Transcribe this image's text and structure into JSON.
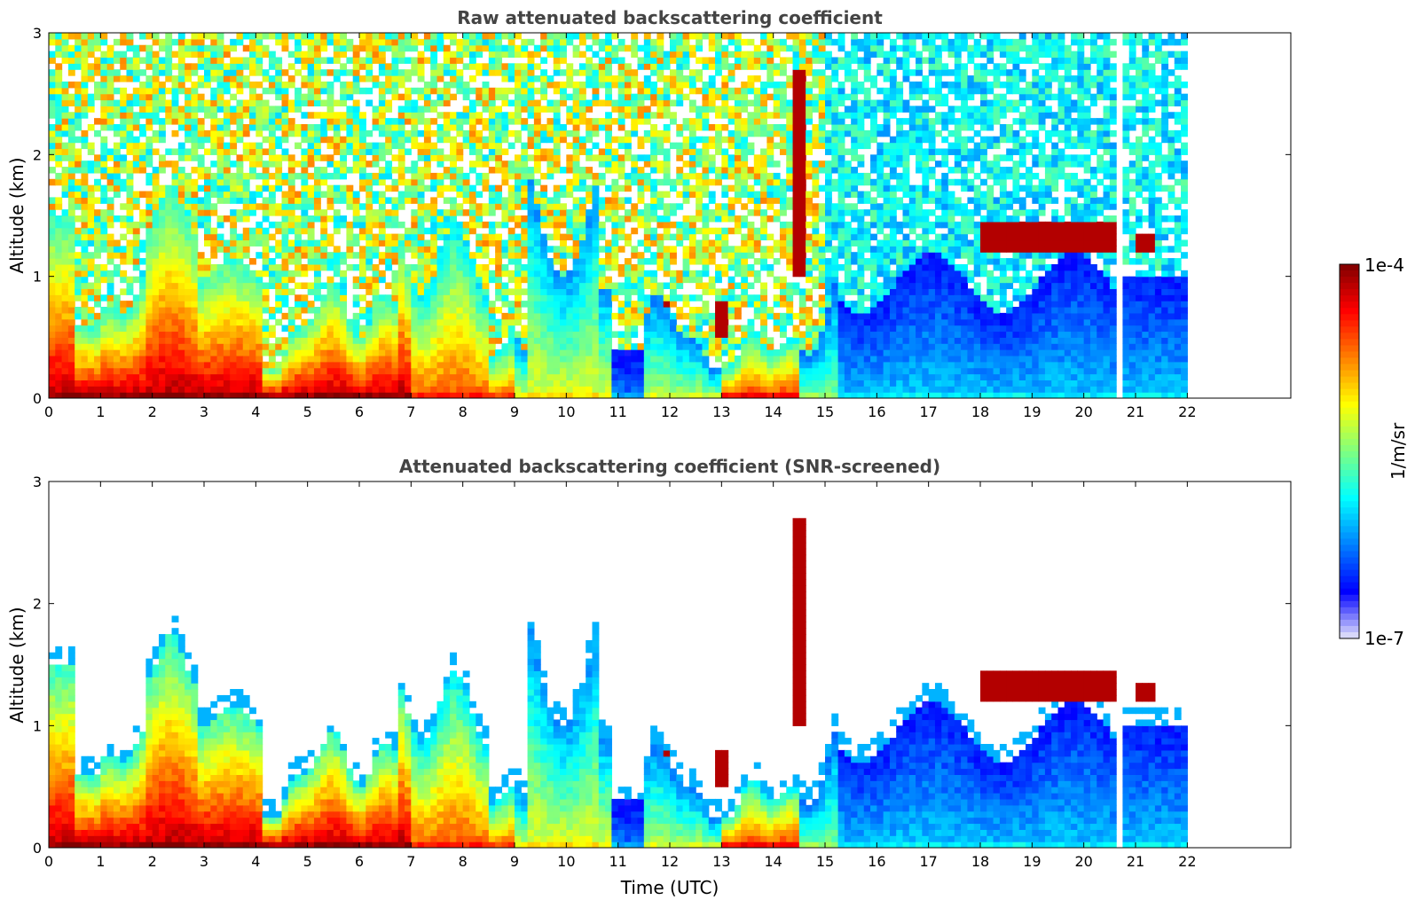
{
  "colors": {
    "title": "#444444",
    "axis": "#000000",
    "background": "#ffffff",
    "colormap": [
      "#e6e6fa",
      "#0000ff",
      "#0080ff",
      "#00ffff",
      "#80ff80",
      "#ffff00",
      "#ff8000",
      "#ff0000",
      "#800000"
    ]
  },
  "chart_data": [
    {
      "type": "heatmap",
      "title": "Raw attenuated backscattering coefficient",
      "xlabel": "",
      "ylabel": "Altitude (km)",
      "x_range": [
        0,
        24
      ],
      "y_range": [
        0,
        3
      ],
      "x_ticks": [
        "0",
        "1",
        "2",
        "3",
        "4",
        "5",
        "6",
        "7",
        "8",
        "9",
        "10",
        "11",
        "12",
        "13",
        "14",
        "15",
        "16",
        "17",
        "18",
        "19",
        "20",
        "21",
        "22"
      ],
      "y_ticks": [
        "0",
        "1",
        "2",
        "3"
      ],
      "data_x_extent": [
        0,
        22
      ],
      "gap_near": 20.7,
      "grid": false,
      "screening": "raw"
    },
    {
      "type": "heatmap",
      "title": "Attenuated backscattering coefficient (SNR-screened)",
      "xlabel": "Time (UTC)",
      "ylabel": "Altitude (km)",
      "x_range": [
        0,
        24
      ],
      "y_range": [
        0,
        3
      ],
      "x_ticks": [
        "0",
        "1",
        "2",
        "3",
        "4",
        "5",
        "6",
        "7",
        "8",
        "9",
        "10",
        "11",
        "12",
        "13",
        "14",
        "15",
        "16",
        "17",
        "18",
        "19",
        "20",
        "21",
        "22"
      ],
      "y_ticks": [
        "0",
        "1",
        "2",
        "3"
      ],
      "data_x_extent": [
        0,
        22
      ],
      "gap_near": 20.7,
      "grid": false,
      "screening": "snr"
    }
  ],
  "colorbar": {
    "max_label": "1e-4",
    "min_label": "1e-7",
    "unit": "1/m/sr",
    "scale": "log",
    "range": [
      1e-07,
      0.0001
    ]
  }
}
